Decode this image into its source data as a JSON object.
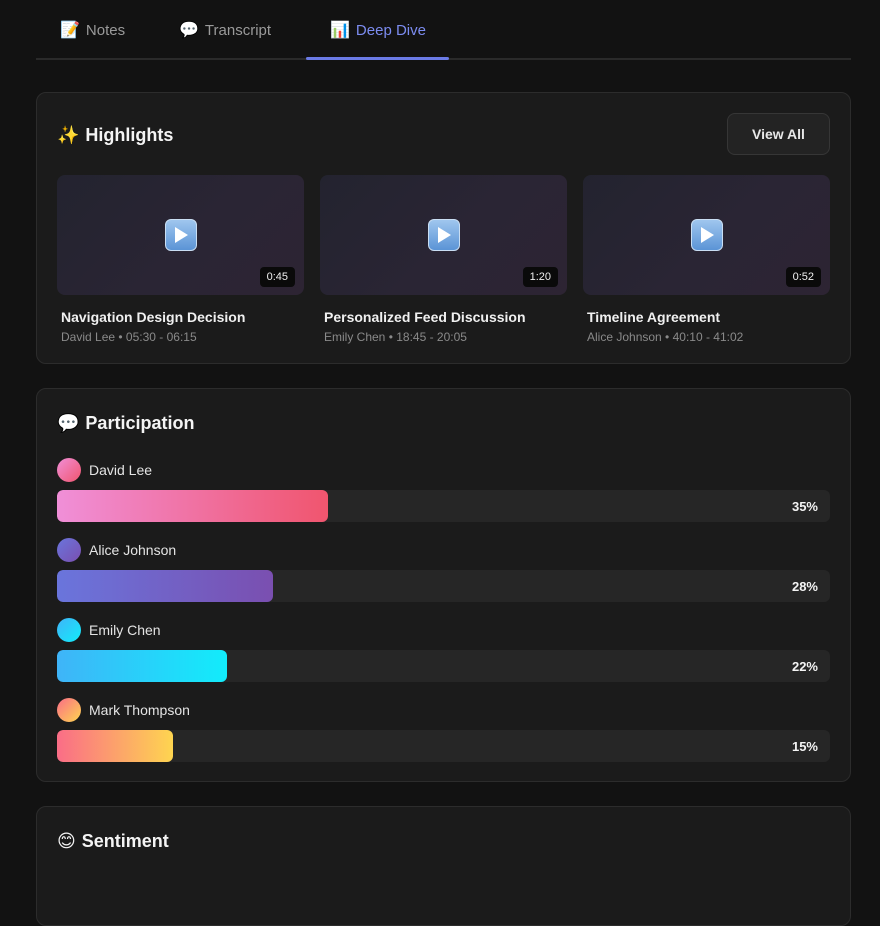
{
  "tabs": [
    {
      "icon": "📝",
      "label": "Notes"
    },
    {
      "icon": "💬",
      "label": "Transcript"
    },
    {
      "icon": "📊",
      "label": "Deep Dive"
    }
  ],
  "active_tab": "Deep Dive",
  "highlights": {
    "icon": "✨",
    "title": "Highlights",
    "view_all_label": "View All",
    "clips": [
      {
        "title": "Navigation Design Decision",
        "speaker": "David Lee",
        "range": "05:30 - 06:15",
        "duration": "0:45"
      },
      {
        "title": "Personalized Feed Discussion",
        "speaker": "Emily Chen",
        "range": "18:45 - 20:05",
        "duration": "1:20"
      },
      {
        "title": "Timeline Agreement",
        "speaker": "Alice Johnson",
        "range": "40:10 - 41:02",
        "duration": "0:52"
      }
    ]
  },
  "participation": {
    "icon": "💬",
    "title": "Participation",
    "people": [
      {
        "name": "David Lee",
        "percent_label": "35%",
        "percent": 35,
        "gradient": [
          "#f08fd8",
          "#f0556e"
        ]
      },
      {
        "name": "Alice Johnson",
        "percent_label": "28%",
        "percent": 28,
        "gradient": [
          "#6a75dc",
          "#7a4fb0"
        ]
      },
      {
        "name": "Emily Chen",
        "percent_label": "22%",
        "percent": 22,
        "gradient": [
          "#3fb4f8",
          "#12ecfb"
        ]
      },
      {
        "name": "Mark Thompson",
        "percent_label": "15%",
        "percent": 15,
        "gradient": [
          "#fa6d87",
          "#fed550"
        ]
      }
    ]
  },
  "sentiment": {
    "icon": "😊",
    "title": "Sentiment"
  }
}
